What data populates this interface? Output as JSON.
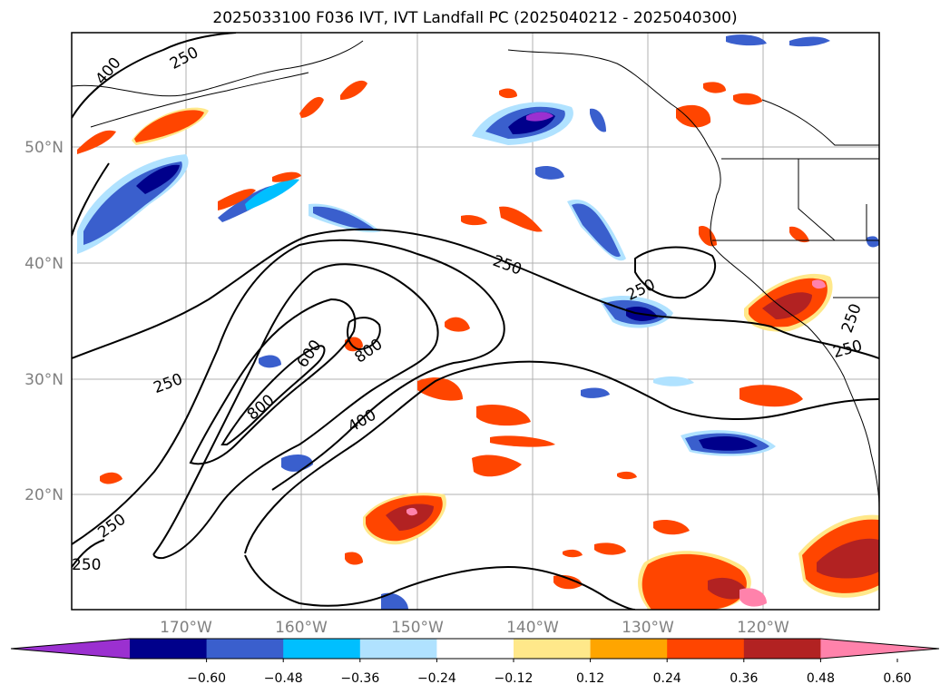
{
  "title": "2025033100 F036 IVT, IVT Landfall PC (2025040212 - 2025040300)",
  "lat_labels": [
    "50°N",
    "40°N",
    "30°N",
    "20°N"
  ],
  "lon_labels": [
    "170°W",
    "160°W",
    "150°W",
    "140°W",
    "130°W",
    "120°W"
  ],
  "contour_labels": [
    "250",
    "400",
    "250",
    "250",
    "600",
    "800",
    "800",
    "400",
    "250",
    "250",
    "250",
    "250",
    "250"
  ],
  "colorbar": {
    "colors": [
      "#9b30d0",
      "#00008b",
      "#3a5fcd",
      "#00bfff",
      "#b0e2ff",
      "#ffffff",
      "#ffe88a",
      "#ffa500",
      "#ff4500",
      "#b22222",
      "#ff82ab"
    ],
    "tick_labels": [
      "−0.60",
      "−0.48",
      "−0.36",
      "−0.24",
      "−0.12",
      "0.12",
      "0.24",
      "0.36",
      "0.48",
      "0.60"
    ]
  },
  "colors": {
    "contour": "#000000",
    "grid": "#b0b0b0",
    "coast": "#000000"
  }
}
